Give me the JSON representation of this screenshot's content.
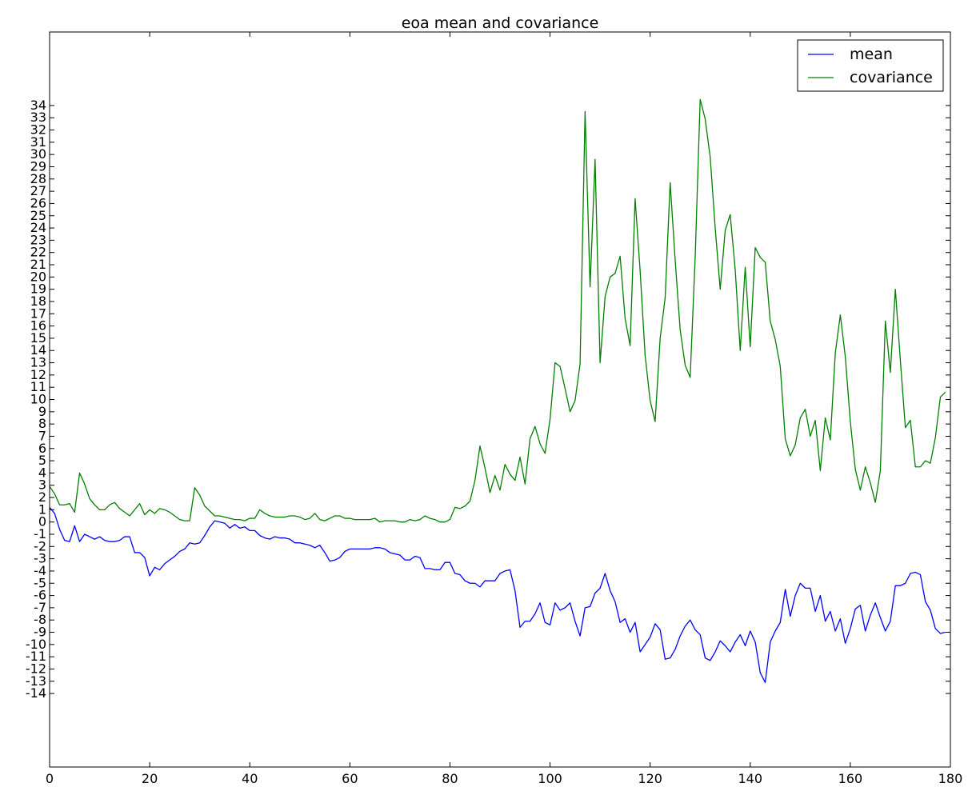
{
  "chart_data": {
    "type": "line",
    "title": "eoa mean and covariance",
    "xlabel": "",
    "ylabel": "",
    "xlim": [
      0,
      180
    ],
    "ylim": [
      -20,
      40
    ],
    "xticks": [
      0,
      20,
      40,
      60,
      80,
      100,
      120,
      140,
      160,
      180
    ],
    "yticks": [
      -14,
      -13,
      -12,
      -11,
      -10,
      -9,
      -8,
      -7,
      -6,
      -5,
      -4,
      -3,
      -2,
      -1,
      0,
      1,
      2,
      3,
      4,
      5,
      6,
      7,
      8,
      9,
      10,
      11,
      12,
      13,
      14,
      15,
      16,
      17,
      18,
      19,
      20,
      21,
      22,
      23,
      24,
      25,
      26,
      27,
      28,
      29,
      30,
      31,
      32,
      33,
      34
    ],
    "grid": false,
    "legend_position": "top-right",
    "series": [
      {
        "name": "mean",
        "color": "#0000ff",
        "x_start": 0,
        "x_step": 1,
        "values": [
          1.2,
          0.7,
          -0.6,
          -1.5,
          -1.6,
          -0.3,
          -1.6,
          -1.0,
          -1.2,
          -1.4,
          -1.2,
          -1.5,
          -1.6,
          -1.6,
          -1.5,
          -1.2,
          -1.2,
          -2.5,
          -2.5,
          -2.9,
          -4.4,
          -3.7,
          -3.9,
          -3.4,
          -3.1,
          -2.8,
          -2.4,
          -2.2,
          -1.7,
          -1.8,
          -1.7,
          -1.1,
          -0.4,
          0.1,
          0.0,
          -0.1,
          -0.5,
          -0.2,
          -0.5,
          -0.4,
          -0.7,
          -0.7,
          -1.1,
          -1.3,
          -1.4,
          -1.2,
          -1.3,
          -1.3,
          -1.4,
          -1.7,
          -1.7,
          -1.8,
          -1.9,
          -2.1,
          -1.9,
          -2.5,
          -3.2,
          -3.1,
          -2.9,
          -2.4,
          -2.2,
          -2.2,
          -2.2,
          -2.2,
          -2.2,
          -2.1,
          -2.1,
          -2.2,
          -2.5,
          -2.6,
          -2.7,
          -3.1,
          -3.1,
          -2.8,
          -2.9,
          -3.8,
          -3.8,
          -3.9,
          -3.9,
          -3.3,
          -3.3,
          -4.2,
          -4.3,
          -4.8,
          -5.0,
          -5.0,
          -5.3,
          -4.8,
          -4.8,
          -4.8,
          -4.2,
          -4.0,
          -3.9,
          -5.6,
          -8.6,
          -8.1,
          -8.1,
          -7.5,
          -6.6,
          -8.2,
          -8.4,
          -6.6,
          -7.2,
          -7.0,
          -6.6,
          -8.1,
          -9.3,
          -7.0,
          -6.9,
          -5.8,
          -5.4,
          -4.2,
          -5.6,
          -6.5,
          -8.2,
          -7.9,
          -9.0,
          -8.2,
          -10.6,
          -10.0,
          -9.4,
          -8.3,
          -8.8,
          -11.2,
          -11.1,
          -10.4,
          -9.3,
          -8.5,
          -8.0,
          -8.8,
          -9.2,
          -11.1,
          -11.3,
          -10.6,
          -9.7,
          -10.1,
          -10.6,
          -9.8,
          -9.2,
          -10.1,
          -8.9,
          -9.8,
          -12.3,
          -13.1,
          -9.8,
          -8.9,
          -8.2,
          -5.5,
          -7.7,
          -6.0,
          -5.0,
          -5.4,
          -5.4,
          -7.3,
          -6.0,
          -8.1,
          -7.3,
          -8.9,
          -7.9,
          -9.9,
          -8.7,
          -7.1,
          -6.8,
          -8.9,
          -7.6,
          -6.6,
          -7.8,
          -8.9,
          -8.1,
          -5.2,
          -5.2,
          -5.0,
          -4.2,
          -4.1,
          -4.3,
          -6.5,
          -7.2,
          -8.7,
          -9.1,
          -9.0
        ]
      },
      {
        "name": "covariance",
        "color": "#008000",
        "x_start": 0,
        "x_step": 1,
        "values": [
          2.9,
          2.3,
          1.4,
          1.4,
          1.5,
          0.8,
          4.0,
          3.1,
          1.9,
          1.4,
          1.0,
          1.0,
          1.4,
          1.6,
          1.1,
          0.8,
          0.5,
          1.0,
          1.5,
          0.6,
          1.0,
          0.7,
          1.1,
          1.0,
          0.8,
          0.5,
          0.2,
          0.1,
          0.1,
          2.8,
          2.2,
          1.3,
          0.9,
          0.5,
          0.5,
          0.4,
          0.3,
          0.2,
          0.2,
          0.1,
          0.3,
          0.3,
          1.0,
          0.7,
          0.5,
          0.4,
          0.4,
          0.4,
          0.5,
          0.5,
          0.4,
          0.2,
          0.3,
          0.7,
          0.2,
          0.1,
          0.3,
          0.5,
          0.5,
          0.3,
          0.3,
          0.2,
          0.2,
          0.2,
          0.2,
          0.3,
          0.0,
          0.1,
          0.1,
          0.1,
          0.0,
          0.0,
          0.2,
          0.1,
          0.2,
          0.5,
          0.3,
          0.2,
          0.0,
          0.0,
          0.2,
          1.2,
          1.1,
          1.3,
          1.7,
          3.4,
          6.2,
          4.4,
          2.4,
          3.8,
          2.6,
          4.7,
          3.9,
          3.4,
          5.3,
          3.1,
          6.8,
          7.8,
          6.4,
          5.6,
          8.4,
          13.0,
          12.7,
          10.9,
          9.0,
          9.9,
          12.9,
          33.5,
          19.2,
          29.6,
          13.0,
          18.4,
          20.0,
          20.3,
          21.7,
          16.6,
          14.4,
          26.4,
          20.5,
          13.6,
          9.9,
          8.2,
          15.0,
          18.3,
          27.7,
          21.4,
          15.7,
          12.8,
          11.8,
          21.6,
          34.5,
          32.9,
          29.8,
          24.0,
          19.0,
          23.8,
          25.1,
          20.6,
          14.0,
          20.8,
          14.3,
          22.4,
          21.6,
          21.2,
          16.4,
          14.9,
          12.7,
          6.8,
          5.4,
          6.3,
          8.5,
          9.2,
          7.0,
          8.3,
          4.2,
          8.5,
          6.7,
          13.8,
          16.9,
          13.5,
          8.2,
          4.3,
          2.6,
          4.5,
          3.2,
          1.6,
          4.2,
          16.4,
          12.2,
          19.0,
          13.2,
          7.7,
          8.3,
          4.5,
          4.5,
          5.0,
          4.8,
          6.9,
          10.2,
          10.6
        ]
      }
    ]
  }
}
